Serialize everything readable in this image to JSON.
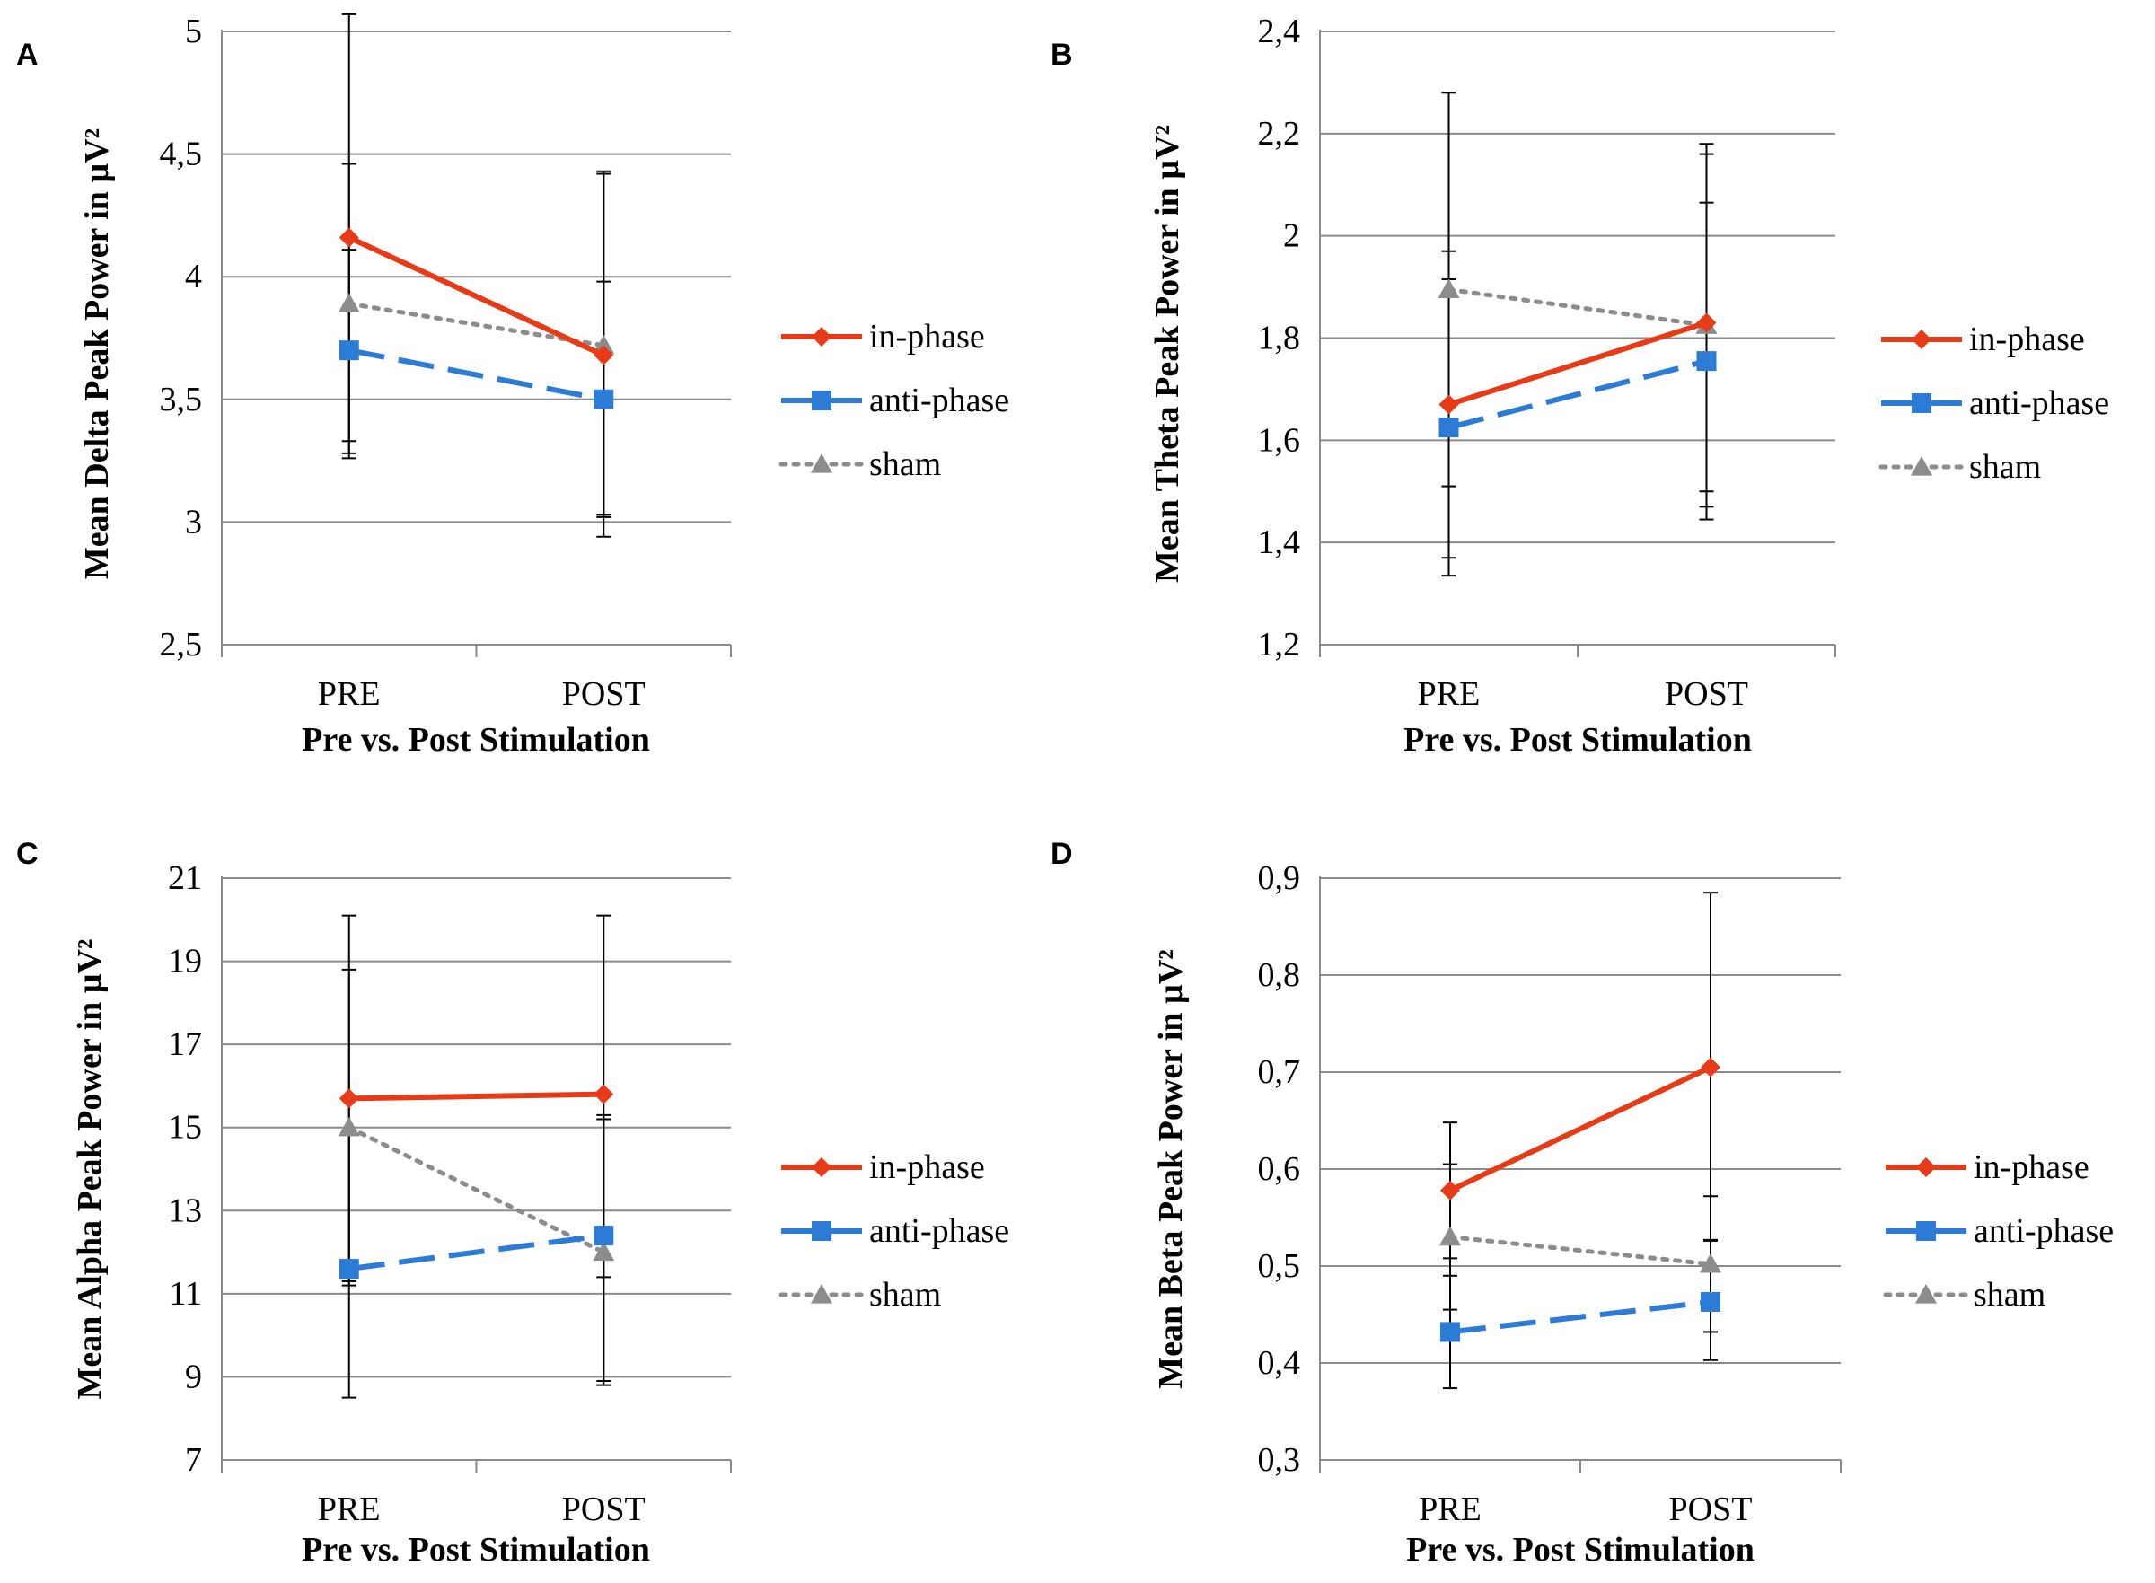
{
  "chart_data": [
    {
      "type": "line",
      "panel_label": "A",
      "categories": [
        "PRE",
        "POST"
      ],
      "xlabel": "Pre vs. Post Stimulation",
      "ylabel": "Mean Delta Peak Power in µV²",
      "ylim": [
        2.5,
        5.0
      ],
      "yticks": [
        2.5,
        3.0,
        3.5,
        4.0,
        4.5,
        5.0
      ],
      "ytick_labels": [
        "2,5",
        "3",
        "3,5",
        "4",
        "4,5",
        "5"
      ],
      "grid": true,
      "legend": "right",
      "series": [
        {
          "name": "in-phase",
          "values": [
            4.16,
            3.68
          ],
          "err_low": [
            3.26,
            2.94
          ],
          "err_high": [
            5.07,
            4.43
          ]
        },
        {
          "name": "anti-phase",
          "values": [
            3.7,
            3.5
          ],
          "err_low": [
            3.28,
            3.02
          ],
          "err_high": [
            4.11,
            3.98
          ]
        },
        {
          "name": "sham",
          "values": [
            3.89,
            3.72
          ],
          "err_low": [
            3.33,
            3.03
          ],
          "err_high": [
            4.46,
            4.42
          ]
        }
      ]
    },
    {
      "type": "line",
      "panel_label": "B",
      "categories": [
        "PRE",
        "POST"
      ],
      "xlabel": "Pre vs. Post Stimulation",
      "ylabel": "Mean Theta Peak Power in µV²",
      "ylim": [
        1.2,
        2.4
      ],
      "yticks": [
        1.2,
        1.4,
        1.6,
        1.8,
        2.0,
        2.2,
        2.4
      ],
      "ytick_labels": [
        "1,2",
        "1,4",
        "1,6",
        "1,8",
        "2",
        "2,2",
        "2,4"
      ],
      "grid": true,
      "legend": "right",
      "series": [
        {
          "name": "in-phase",
          "values": [
            1.67,
            1.83
          ],
          "err_low": [
            1.37,
            1.5
          ],
          "err_high": [
            1.97,
            2.16
          ]
        },
        {
          "name": "anti-phase",
          "values": [
            1.625,
            1.755
          ],
          "err_low": [
            1.335,
            1.445
          ],
          "err_high": [
            1.915,
            2.065
          ]
        },
        {
          "name": "sham",
          "values": [
            1.895,
            1.825
          ],
          "err_low": [
            1.51,
            1.47
          ],
          "err_high": [
            2.28,
            2.18
          ]
        }
      ]
    },
    {
      "type": "line",
      "panel_label": "C",
      "categories": [
        "PRE",
        "POST"
      ],
      "xlabel": "Pre vs. Post Stimulation",
      "ylabel": "Mean Alpha Peak Power in µV²",
      "ylim": [
        7,
        21
      ],
      "yticks": [
        7,
        9,
        11,
        13,
        15,
        17,
        19,
        21
      ],
      "ytick_labels": [
        "7",
        "9",
        "11",
        "13",
        "15",
        "17",
        "19",
        "21"
      ],
      "grid": true,
      "legend": "right",
      "series": [
        {
          "name": "in-phase",
          "values": [
            15.7,
            15.8
          ],
          "err_low": [
            11.3,
            11.4
          ],
          "err_high": [
            20.1,
            20.1
          ]
        },
        {
          "name": "anti-phase",
          "values": [
            11.6,
            12.4
          ],
          "err_low": [
            8.5,
            8.9
          ],
          "err_high": [
            14.9,
            15.3
          ]
        },
        {
          "name": "sham",
          "values": [
            15.0,
            12.0
          ],
          "err_low": [
            11.2,
            8.8
          ],
          "err_high": [
            18.8,
            15.2
          ]
        }
      ]
    },
    {
      "type": "line",
      "panel_label": "D",
      "categories": [
        "PRE",
        "POST"
      ],
      "xlabel": "Pre vs. Post Stimulation",
      "ylabel": "Mean Beta Peak Power in µV²",
      "ylim": [
        0.3,
        0.9
      ],
      "yticks": [
        0.3,
        0.4,
        0.5,
        0.6,
        0.7,
        0.8,
        0.9
      ],
      "ytick_labels": [
        "0,3",
        "0,4",
        "0,5",
        "0,6",
        "0,7",
        "0,8",
        "0,9"
      ],
      "grid": true,
      "legend": "right",
      "series": [
        {
          "name": "in-phase",
          "values": [
            0.578,
            0.705
          ],
          "err_low": [
            0.508,
            0.527
          ],
          "err_high": [
            0.648,
            0.885
          ]
        },
        {
          "name": "anti-phase",
          "values": [
            0.432,
            0.463
          ],
          "err_low": [
            0.374,
            0.403
          ],
          "err_high": [
            0.49,
            0.526
          ]
        },
        {
          "name": "sham",
          "values": [
            0.53,
            0.502
          ],
          "err_low": [
            0.455,
            0.432
          ],
          "err_high": [
            0.605,
            0.572
          ]
        }
      ]
    }
  ],
  "colors": {
    "in-phase": "#e63b16",
    "anti-phase": "#2c7bd5",
    "sham": "#8c8c8c",
    "grid": "#8a8a8a",
    "errorbar": "#000000"
  },
  "markers": {
    "in-phase": "diamond",
    "anti-phase": "square",
    "sham": "triangle"
  }
}
